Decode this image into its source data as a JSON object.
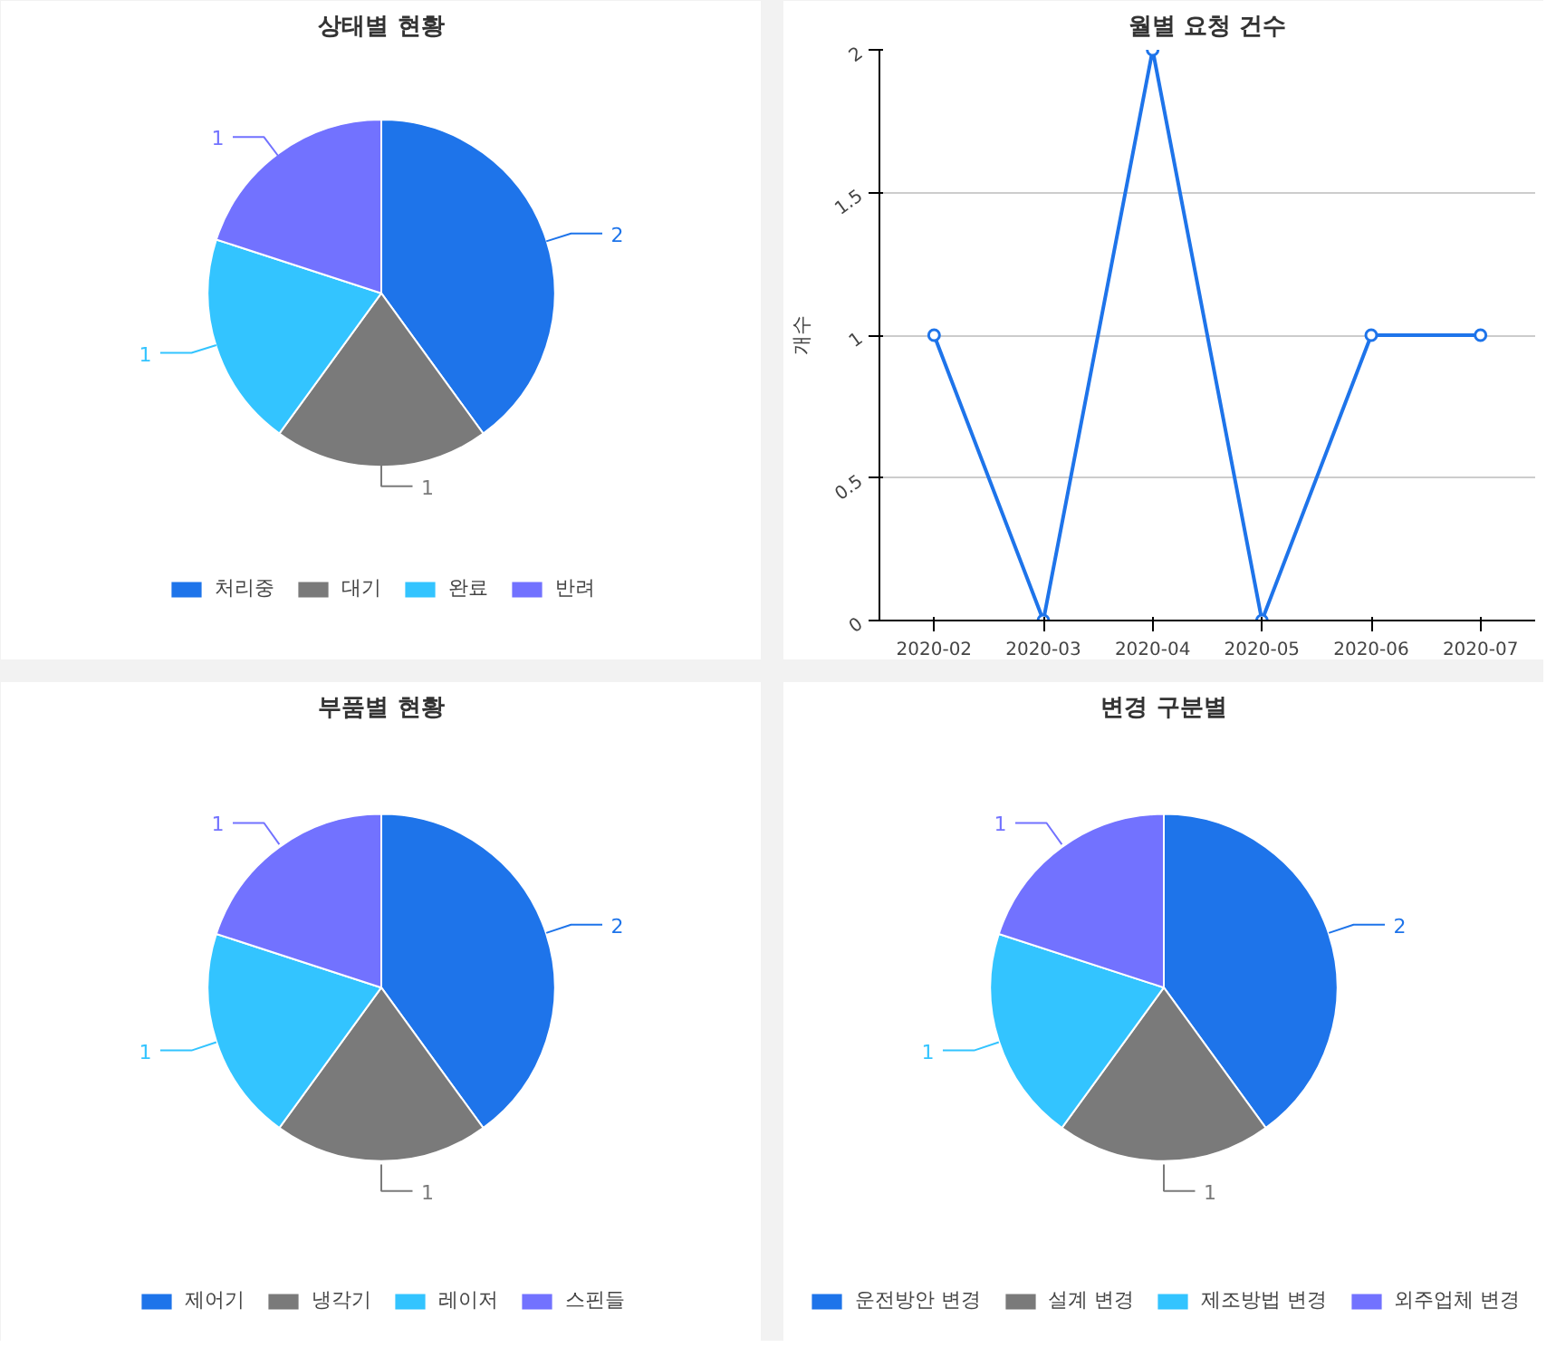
{
  "chart_data": [
    {
      "type": "pie",
      "title": "상태별 현황",
      "categories": [
        "처리중",
        "대기",
        "완료",
        "반려"
      ],
      "values": [
        2,
        1,
        1,
        1
      ],
      "colors": [
        "#1e74ea",
        "#7a7a7a",
        "#33c4ff",
        "#7272ff"
      ],
      "data_labels": true,
      "legend": "bottom"
    },
    {
      "type": "line",
      "title": "월별 요청 건수",
      "ylabel": "개수",
      "categories": [
        "2020-02",
        "2020-03",
        "2020-04",
        "2020-05",
        "2020-06",
        "2020-07"
      ],
      "series": [
        {
          "color": "#1e74ea",
          "values": [
            1,
            0,
            2,
            0,
            1,
            1
          ]
        }
      ],
      "ylim": [
        0,
        2
      ],
      "yticks": [
        0,
        0.5,
        1,
        1.5,
        2
      ],
      "grid": "y",
      "marker": "circle"
    },
    {
      "type": "pie",
      "title": "부품별 현황",
      "categories": [
        "제어기",
        "냉각기",
        "레이저",
        "스핀들"
      ],
      "values": [
        2,
        1,
        1,
        1
      ],
      "colors": [
        "#1e74ea",
        "#7a7a7a",
        "#33c4ff",
        "#7272ff"
      ],
      "data_labels": true,
      "legend": "bottom"
    },
    {
      "type": "pie",
      "title": "변경 구분별",
      "categories": [
        "운전방안 변경",
        "설계 변경",
        "제조방법 변경",
        "외주업체 변경"
      ],
      "values": [
        2,
        1,
        1,
        1
      ],
      "colors": [
        "#1e74ea",
        "#7a7a7a",
        "#33c4ff",
        "#7272ff"
      ],
      "data_labels": true,
      "legend": "bottom"
    }
  ]
}
